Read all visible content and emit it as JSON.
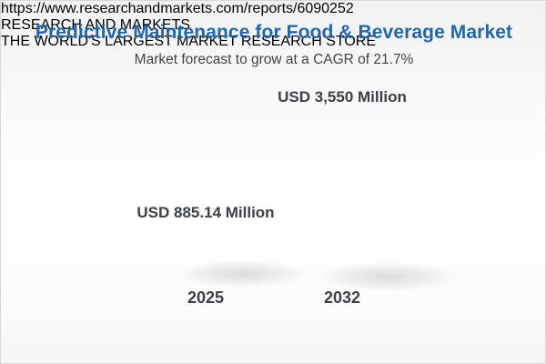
{
  "header": {
    "title": "Predictive Maintenance for Food & Beverage Market",
    "subtitle": "Market forecast to grow at a CAGR of 21.7%"
  },
  "chart_data": {
    "type": "bar",
    "title": "Predictive Maintenance for Food & Beverage Market",
    "subtitle": "Market forecast to grow at a CAGR of 21.7%",
    "cagr_percent": 21.7,
    "unit": "USD Million",
    "categories": [
      "2025",
      "2032"
    ],
    "values": [
      885.14,
      3550
    ],
    "value_labels": [
      "USD 885.14 Million",
      "USD 3,550 Million"
    ],
    "ylim": [
      0,
      3550
    ],
    "grid": false,
    "legend": "none",
    "bar_style": "3d-cylinder",
    "bar_colors": [
      "#efc05c",
      "#4a7ca8"
    ],
    "note_2032_bar": "blue growth segment stacked on yellow base segment equal to the 2025 value"
  },
  "footer": {
    "url": "https://www.researchandmarkets.com/reports/6090252",
    "logo": {
      "word1": "RESEARCH",
      "word2": "AND",
      "word3": "MARKETS",
      "tagline": "THE WORLD'S LARGEST MARKET RESEARCH STORE"
    }
  },
  "colors": {
    "title_blue": "#2267a7",
    "text_dark": "#3c4044",
    "url_gray": "#8e8e8e",
    "logo_blue": "#2b6ead",
    "logo_gold": "#f0ac33",
    "bar_yellow": "#efc05c",
    "bar_blue": "#4a7ca8"
  }
}
